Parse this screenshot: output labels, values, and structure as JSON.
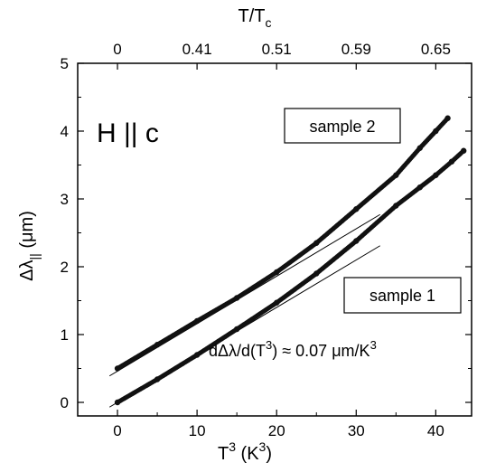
{
  "chart_data": {
    "type": "scatter",
    "xlabel": {
      "base": "T",
      "sup": "3",
      "units": " (K",
      "units_sup": "3",
      "close": ")"
    },
    "ylabel": {
      "delta": "Δλ",
      "sub": "||",
      "units": " (μm)"
    },
    "top_axis_label": {
      "base": "T/T",
      "sub": "c"
    },
    "xlim": [
      -5,
      44.5
    ],
    "ylim": [
      -0.2,
      5.0
    ],
    "x_ticks": [
      0,
      10,
      20,
      30,
      40
    ],
    "y_ticks": [
      0,
      1,
      2,
      3,
      4,
      5
    ],
    "top_ticks": [
      {
        "label": "0",
        "x": 0
      },
      {
        "label": "0.41",
        "x": 10
      },
      {
        "label": "0.51",
        "x": 20
      },
      {
        "label": "0.59",
        "x": 30
      },
      {
        "label": "0.65",
        "x": 40
      }
    ],
    "annotations": {
      "field": "H || c",
      "sample1": "sample 1",
      "sample2": "sample 2",
      "slope": {
        "pre": "dΔλ/d(T",
        "sup1": "3",
        "mid": ") ≈ 0.07 μm/K",
        "sup2": "3"
      }
    },
    "series": [
      {
        "name": "sample 1",
        "x": [
          0,
          5,
          10,
          15,
          20,
          25,
          30,
          35,
          38,
          40,
          42,
          43.5
        ],
        "y": [
          0,
          0.34,
          0.7,
          1.08,
          1.47,
          1.9,
          2.38,
          2.9,
          3.17,
          3.35,
          3.55,
          3.71
        ]
      },
      {
        "name": "sample 2",
        "x": [
          0,
          5,
          10,
          15,
          20,
          25,
          30,
          35,
          38,
          40,
          41.5
        ],
        "y": [
          0.5,
          0.85,
          1.2,
          1.54,
          1.92,
          2.35,
          2.85,
          3.35,
          3.75,
          4.0,
          4.19
        ]
      }
    ],
    "fit_lines": [
      {
        "x": [
          -1,
          33
        ],
        "y": [
          -0.07,
          2.31
        ]
      },
      {
        "x": [
          -1,
          33
        ],
        "y": [
          0.39,
          2.77
        ]
      }
    ]
  }
}
